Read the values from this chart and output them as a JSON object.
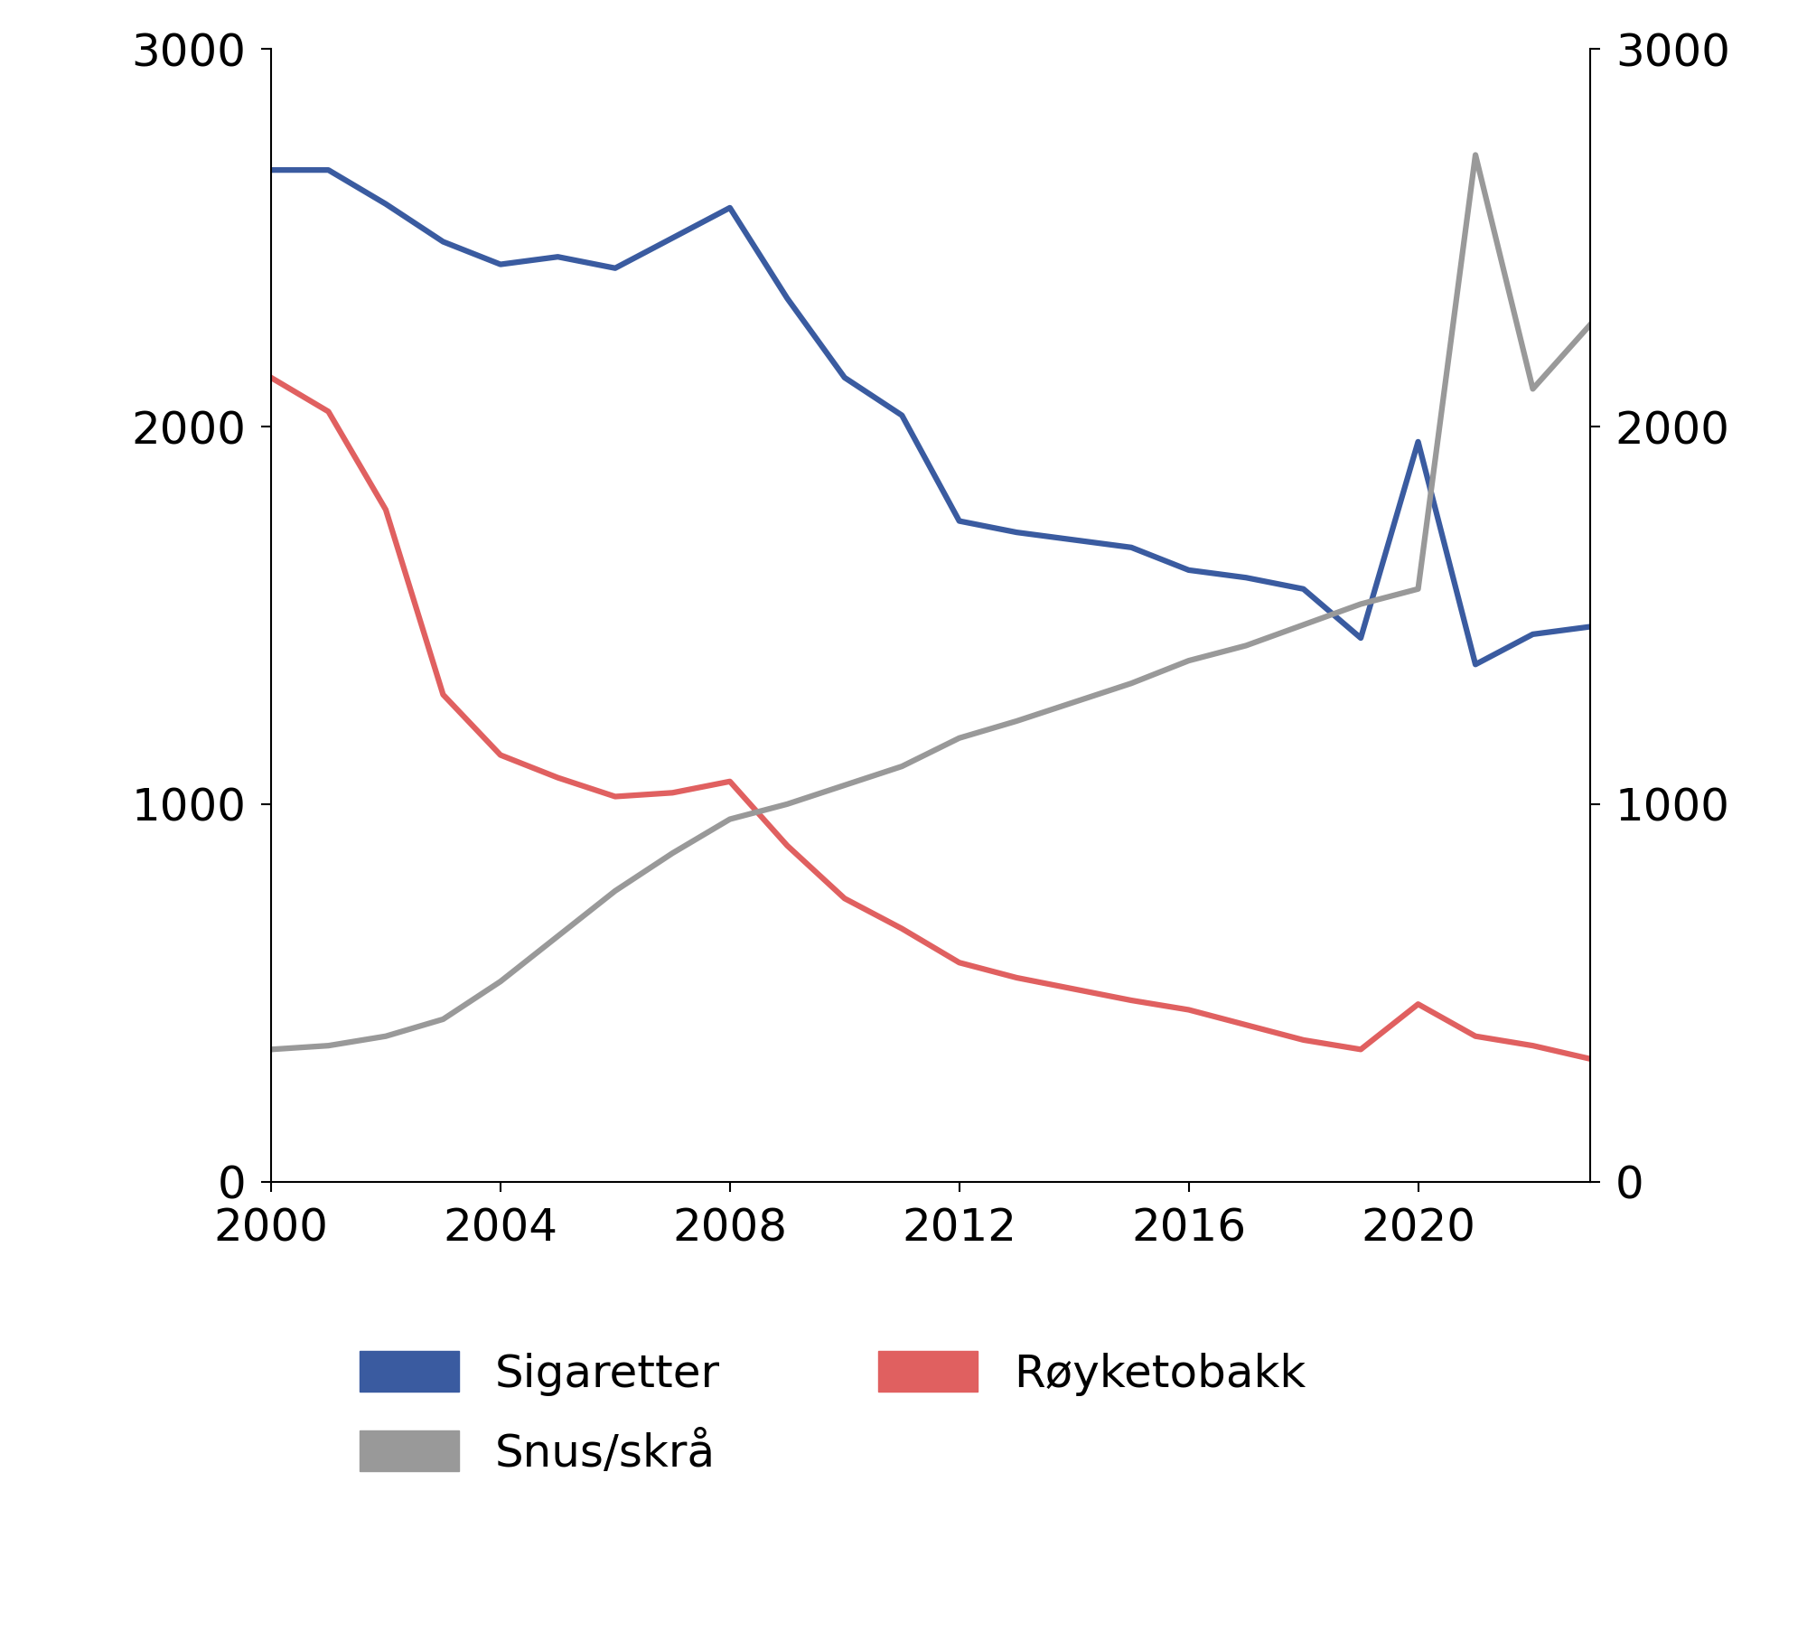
{
  "years": [
    2000,
    2001,
    2002,
    2003,
    2004,
    2005,
    2006,
    2007,
    2008,
    2009,
    2010,
    2011,
    2012,
    2013,
    2014,
    2015,
    2016,
    2017,
    2018,
    2019,
    2020,
    2021,
    2022,
    2023
  ],
  "sigaretter": [
    2680,
    2680,
    2590,
    2490,
    2430,
    2450,
    2420,
    2500,
    2580,
    2340,
    2130,
    2030,
    1750,
    1720,
    1700,
    1680,
    1620,
    1600,
    1570,
    1440,
    1960,
    1370,
    1450,
    1470
  ],
  "royketobakk": [
    2130,
    2040,
    1780,
    1290,
    1130,
    1070,
    1020,
    1030,
    1060,
    890,
    750,
    670,
    580,
    540,
    510,
    480,
    455,
    415,
    375,
    350,
    470,
    385,
    360,
    325
  ],
  "snus_skra": [
    350,
    360,
    385,
    430,
    530,
    650,
    770,
    870,
    960,
    1000,
    1050,
    1100,
    1175,
    1220,
    1270,
    1320,
    1380,
    1420,
    1475,
    1530,
    1570,
    2720,
    2100,
    2270
  ],
  "color_sigaretter": "#3A5BA0",
  "color_royketobakk": "#E06060",
  "color_snus": "#999999",
  "ylim": [
    0,
    3000
  ],
  "yticks": [
    0,
    1000,
    2000,
    3000
  ],
  "xticks": [
    2000,
    2004,
    2008,
    2012,
    2016,
    2020
  ],
  "legend_labels": [
    "Sigaretter",
    "Røyketobakk",
    "Snus/skrå"
  ],
  "linewidth": 4.5,
  "tick_fontsize": 36,
  "legend_fontsize": 36
}
